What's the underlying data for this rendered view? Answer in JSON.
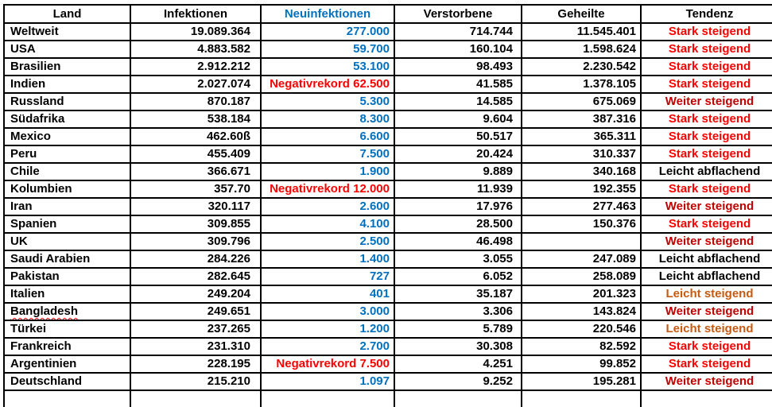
{
  "table": {
    "columns": [
      {
        "key": "land",
        "label": "Land"
      },
      {
        "key": "infektionen",
        "label": "Infektionen"
      },
      {
        "key": "neuinfektionen",
        "label": "Neuinfektionen"
      },
      {
        "key": "verstorbene",
        "label": "Verstorbene"
      },
      {
        "key": "geheilte",
        "label": "Geheilte"
      },
      {
        "key": "tendenz",
        "label": "Tendenz"
      }
    ],
    "colors": {
      "header_neuinfektionen": "#0070C0",
      "neuinfektionen_value": "#0070C0",
      "negativrekord": "#FF0000",
      "stark_steigend": "#FF0000",
      "weiter_steigend": "#C00000",
      "leicht_steigend": "#C55A11",
      "leicht_abflachend": "#000000",
      "border": "#000000"
    },
    "rows": [
      {
        "land": "Weltweit",
        "infektionen": "19.089.364",
        "neuinfektionen": "277.000",
        "negativrekord": false,
        "verstorbene": "714.744",
        "geheilte": "11.545.401",
        "tendenz": "Stark steigend",
        "tendenz_type": "stark_steigend"
      },
      {
        "land": "USA",
        "infektionen": "4.883.582",
        "neuinfektionen": "59.700",
        "negativrekord": false,
        "verstorbene": "160.104",
        "geheilte": "1.598.624",
        "tendenz": "Stark steigend",
        "tendenz_type": "stark_steigend"
      },
      {
        "land": "Brasilien",
        "infektionen": "2.912.212",
        "neuinfektionen": "53.100",
        "negativrekord": false,
        "verstorbene": "98.493",
        "geheilte": "2.230.542",
        "tendenz": "Stark steigend",
        "tendenz_type": "stark_steigend"
      },
      {
        "land": "Indien",
        "infektionen": "2.027.074",
        "neuinfektionen": "Negativrekord 62.500",
        "negativrekord": true,
        "verstorbene": "41.585",
        "geheilte": "1.378.105",
        "tendenz": "Stark steigend",
        "tendenz_type": "stark_steigend"
      },
      {
        "land": "Russland",
        "infektionen": "870.187",
        "neuinfektionen": "5.300",
        "negativrekord": false,
        "verstorbene": "14.585",
        "geheilte": "675.069",
        "tendenz": "Weiter steigend",
        "tendenz_type": "weiter_steigend"
      },
      {
        "land": "Südafrika",
        "infektionen": "538.184",
        "neuinfektionen": "8.300",
        "negativrekord": false,
        "verstorbene": "9.604",
        "geheilte": "387.316",
        "tendenz": "Stark steigend",
        "tendenz_type": "stark_steigend"
      },
      {
        "land": "Mexico",
        "infektionen": "462.60ß",
        "neuinfektionen": "6.600",
        "negativrekord": false,
        "verstorbene": "50.517",
        "geheilte": "365.311",
        "tendenz": "Stark steigend",
        "tendenz_type": "stark_steigend"
      },
      {
        "land": "Peru",
        "infektionen": "455.409",
        "neuinfektionen": "7.500",
        "negativrekord": false,
        "verstorbene": "20.424",
        "geheilte": "310.337",
        "tendenz": "Stark steigend",
        "tendenz_type": "stark_steigend"
      },
      {
        "land": "Chile",
        "infektionen": "366.671",
        "neuinfektionen": "1.900",
        "negativrekord": false,
        "verstorbene": "9.889",
        "geheilte": "340.168",
        "tendenz": "Leicht abflachend",
        "tendenz_type": "leicht_abflachend"
      },
      {
        "land": "Kolumbien",
        "infektionen": "357.70",
        "neuinfektionen": "Negativrekord 12.000",
        "negativrekord": true,
        "verstorbene": "11.939",
        "geheilte": "192.355",
        "tendenz": "Stark steigend",
        "tendenz_type": "stark_steigend"
      },
      {
        "land": "Iran",
        "infektionen": "320.117",
        "neuinfektionen": "2.600",
        "negativrekord": false,
        "verstorbene": "17.976",
        "geheilte": "277.463",
        "tendenz": "Weiter steigend",
        "tendenz_type": "weiter_steigend"
      },
      {
        "land": "Spanien",
        "infektionen": "309.855",
        "neuinfektionen": "4.100",
        "negativrekord": false,
        "verstorbene": "28.500",
        "geheilte": "150.376",
        "tendenz": "Stark steigend",
        "tendenz_type": "stark_steigend"
      },
      {
        "land": "UK",
        "infektionen": "309.796",
        "neuinfektionen": "2.500",
        "negativrekord": false,
        "verstorbene": "46.498",
        "geheilte": "",
        "tendenz": "Weiter steigend",
        "tendenz_type": "weiter_steigend"
      },
      {
        "land": "Saudi Arabien",
        "infektionen": "284.226",
        "neuinfektionen": "1.400",
        "negativrekord": false,
        "verstorbene": "3.055",
        "geheilte": "247.089",
        "tendenz": "Leicht abflachend",
        "tendenz_type": "leicht_abflachend"
      },
      {
        "land": "Pakistan",
        "infektionen": "282.645",
        "neuinfektionen": "727",
        "negativrekord": false,
        "verstorbene": "6.052",
        "geheilte": "258.089",
        "tendenz": "Leicht abflachend",
        "tendenz_type": "leicht_abflachend"
      },
      {
        "land": "Italien",
        "infektionen": "249.204",
        "neuinfektionen": "401",
        "negativrekord": false,
        "verstorbene": "35.187",
        "geheilte": "201.323",
        "tendenz": "Leicht steigend",
        "tendenz_type": "leicht_steigend"
      },
      {
        "land": "Bangladesh",
        "infektionen": "249.651",
        "neuinfektionen": "3.000",
        "negativrekord": false,
        "verstorbene": "3.306",
        "geheilte": "143.824",
        "tendenz": "Weiter steigend",
        "tendenz_type": "weiter_steigend",
        "spellcheck": true
      },
      {
        "land": "Türkei",
        "infektionen": "237.265",
        "neuinfektionen": "1.200",
        "negativrekord": false,
        "verstorbene": "5.789",
        "geheilte": "220.546",
        "tendenz": "Leicht steigend",
        "tendenz_type": "leicht_steigend"
      },
      {
        "land": "Frankreich",
        "infektionen": "231.310",
        "neuinfektionen": "2.700",
        "negativrekord": false,
        "verstorbene": "30.308",
        "geheilte": "82.592",
        "tendenz": "Stark steigend",
        "tendenz_type": "stark_steigend"
      },
      {
        "land": "Argentinien",
        "infektionen": "228.195",
        "neuinfektionen": "Negativrekord 7.500",
        "negativrekord": true,
        "verstorbene": "4.251",
        "geheilte": "99.852",
        "tendenz": "Stark steigend",
        "tendenz_type": "stark_steigend"
      },
      {
        "land": "Deutschland",
        "infektionen": "215.210",
        "neuinfektionen": "1.097",
        "negativrekord": false,
        "verstorbene": "9.252",
        "geheilte": "195.281",
        "tendenz": "Weiter steigend",
        "tendenz_type": "weiter_steigend"
      }
    ]
  }
}
